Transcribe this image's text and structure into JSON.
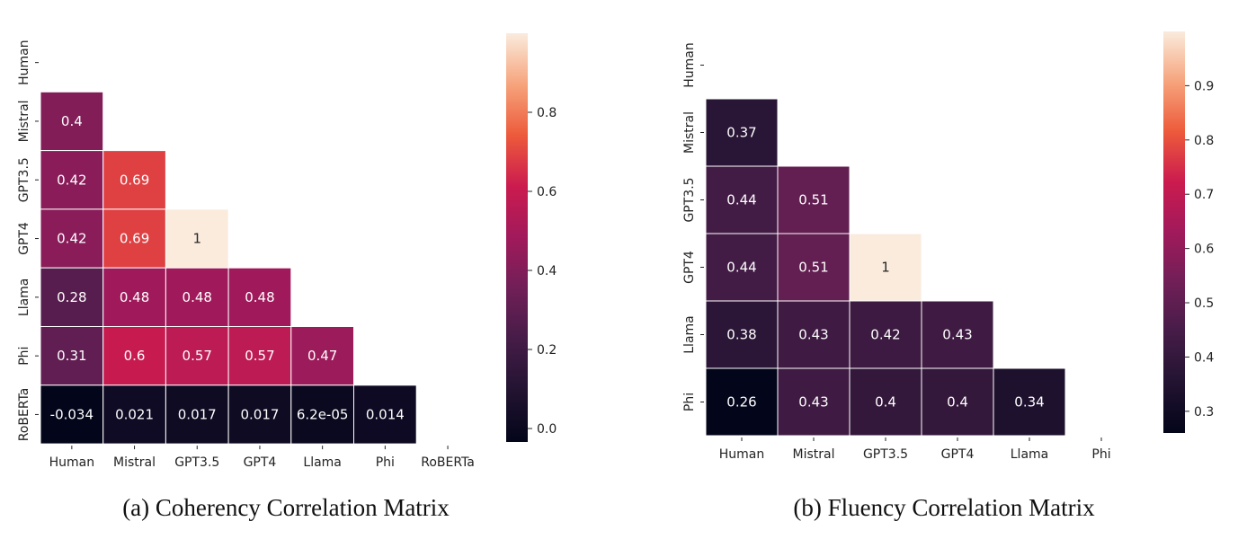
{
  "chart_data": [
    {
      "type": "heatmap",
      "caption": "(a) Coherency Correlation Matrix",
      "title": "",
      "rows": [
        "Human",
        "Mistral",
        "GPT3.5",
        "GPT4",
        "Llama",
        "Phi",
        "RoBERTa"
      ],
      "columns": [
        "Human",
        "Mistral",
        "GPT3.5",
        "GPT4",
        "Llama",
        "Phi",
        "RoBERTa"
      ],
      "mask": "upper-triangle-and-diagonal",
      "values": [
        [
          null,
          null,
          null,
          null,
          null,
          null,
          null
        ],
        [
          0.4,
          null,
          null,
          null,
          null,
          null,
          null
        ],
        [
          0.42,
          0.69,
          null,
          null,
          null,
          null,
          null
        ],
        [
          0.42,
          0.69,
          1,
          null,
          null,
          null,
          null
        ],
        [
          0.28,
          0.48,
          0.48,
          0.48,
          null,
          null,
          null
        ],
        [
          0.31,
          0.6,
          0.57,
          0.57,
          0.47,
          null,
          null
        ],
        [
          -0.034,
          0.021,
          0.017,
          0.017,
          6.2e-05,
          0.014,
          null
        ]
      ],
      "value_labels": [
        [],
        [
          "0.4"
        ],
        [
          "0.42",
          "0.69"
        ],
        [
          "0.42",
          "0.69",
          "1"
        ],
        [
          "0.28",
          "0.48",
          "0.48",
          "0.48"
        ],
        [
          "0.31",
          "0.6",
          "0.57",
          "0.57",
          "0.47"
        ],
        [
          "-0.034",
          "0.021",
          "0.017",
          "0.017",
          "6.2e-05",
          "0.014"
        ]
      ],
      "colorbar": {
        "range": [
          -0.034,
          1
        ],
        "ticks": [
          0.8,
          0.6,
          0.4,
          0.2,
          0.0
        ],
        "tick_labels": [
          "0.8",
          "0.6",
          "0.4",
          "0.2",
          "0.0"
        ]
      },
      "colormap": "rocket"
    },
    {
      "type": "heatmap",
      "caption": "(b) Fluency Correlation Matrix",
      "title": "",
      "rows": [
        "Human",
        "Mistral",
        "GPT3.5",
        "GPT4",
        "Llama",
        "Phi"
      ],
      "columns": [
        "Human",
        "Mistral",
        "GPT3.5",
        "GPT4",
        "Llama",
        "Phi"
      ],
      "mask": "upper-triangle-and-diagonal",
      "values": [
        [
          null,
          null,
          null,
          null,
          null,
          null
        ],
        [
          0.37,
          null,
          null,
          null,
          null,
          null
        ],
        [
          0.44,
          0.51,
          null,
          null,
          null,
          null
        ],
        [
          0.44,
          0.51,
          1,
          null,
          null,
          null
        ],
        [
          0.38,
          0.43,
          0.42,
          0.43,
          null,
          null
        ],
        [
          0.26,
          0.43,
          0.4,
          0.4,
          0.34,
          null
        ]
      ],
      "value_labels": [
        [],
        [
          "0.37"
        ],
        [
          "0.44",
          "0.51"
        ],
        [
          "0.44",
          "0.51",
          "1"
        ],
        [
          "0.38",
          "0.43",
          "0.42",
          "0.43"
        ],
        [
          "0.26",
          "0.43",
          "0.4",
          "0.4",
          "0.34"
        ]
      ],
      "colorbar": {
        "range": [
          0.26,
          1
        ],
        "ticks": [
          0.9,
          0.8,
          0.7,
          0.6,
          0.5,
          0.4,
          0.3
        ],
        "tick_labels": [
          "0.9",
          "0.8",
          "0.7",
          "0.6",
          "0.5",
          "0.4",
          "0.3"
        ]
      },
      "colormap": "rocket"
    }
  ]
}
